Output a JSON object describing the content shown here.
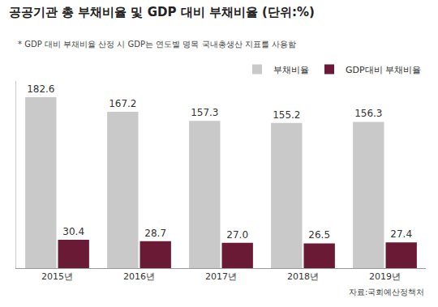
{
  "chart_data": {
    "type": "bar",
    "title": "공공기관 총 부채비율 및 GDP 대비 부채비율 (단위:%)",
    "subtitle": "* GDP 대비 부채비율 산정 시 GDP는 연도별 명목 국내총생산 지표를 사용함",
    "source": "자료:국회예산정책처",
    "categories": [
      "2015년",
      "2016년",
      "2017년",
      "2018년",
      "2019년"
    ],
    "series": [
      {
        "name": "부채비율",
        "color": "#c9c9c9",
        "values": [
          182.6,
          167.2,
          157.3,
          155.2,
          156.3
        ]
      },
      {
        "name": "GDP대비 부채비율",
        "color": "#6b1a35",
        "values": [
          30.4,
          28.7,
          27.0,
          26.5,
          27.4
        ],
        "value_labels": [
          "30.4",
          "28.7",
          "27.0",
          "26.5",
          "27.4"
        ]
      }
    ],
    "ylim": [
      0,
      200
    ],
    "yticks": [],
    "grid": false,
    "legend": "top-right",
    "data_labels": true,
    "tick_labels": "x"
  }
}
